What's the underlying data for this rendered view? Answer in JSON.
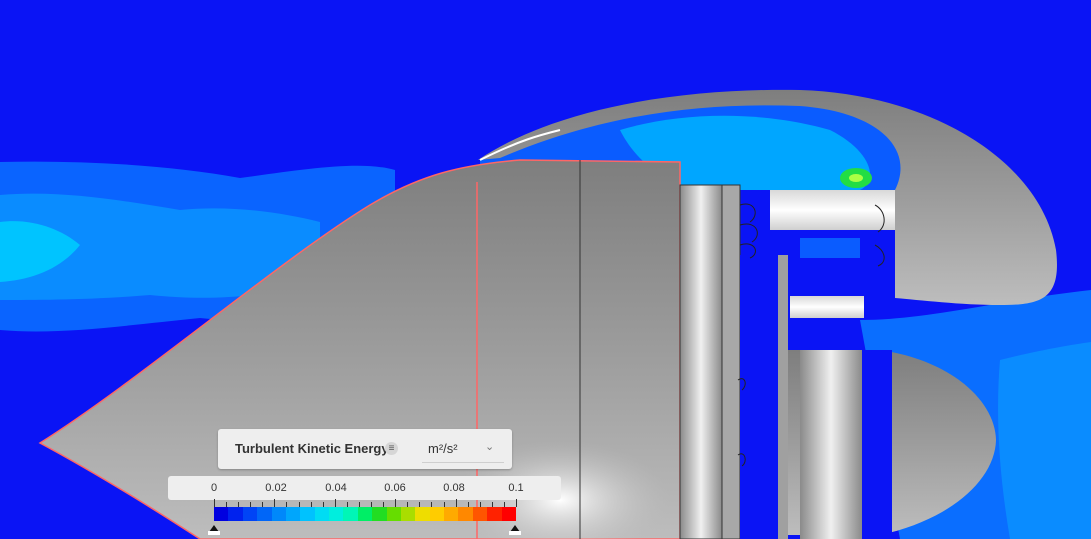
{
  "legend": {
    "quantity": "Turbulent Kinetic Energy",
    "unit": "m²/s²",
    "tick_labels": [
      "0",
      "0.02",
      "0.04",
      "0.06",
      "0.08",
      "0.1"
    ],
    "range": [
      0,
      0.1
    ],
    "colormap": [
      "#0000e0",
      "#0022ee",
      "#0044f6",
      "#0066f8",
      "#0088fa",
      "#00a6fc",
      "#00c2fe",
      "#00dcf4",
      "#00eede",
      "#00f6b6",
      "#00ee66",
      "#22dd22",
      "#66dd00",
      "#aadd00",
      "#eedd00",
      "#ffcc00",
      "#ffaa00",
      "#ff8800",
      "#ff5500",
      "#ff2200",
      "#ff0000"
    ]
  },
  "icons": {
    "legend_menu": "menu-icon",
    "unit_dropdown": "chevron-down-icon",
    "range_min_handle": "triangle-up-icon",
    "range_max_handle": "triangle-up-icon"
  },
  "colors": {
    "background_field": "#0a14f5",
    "geometry_gray": "#9a9a9a",
    "highlight_edge": "#ff5555"
  }
}
